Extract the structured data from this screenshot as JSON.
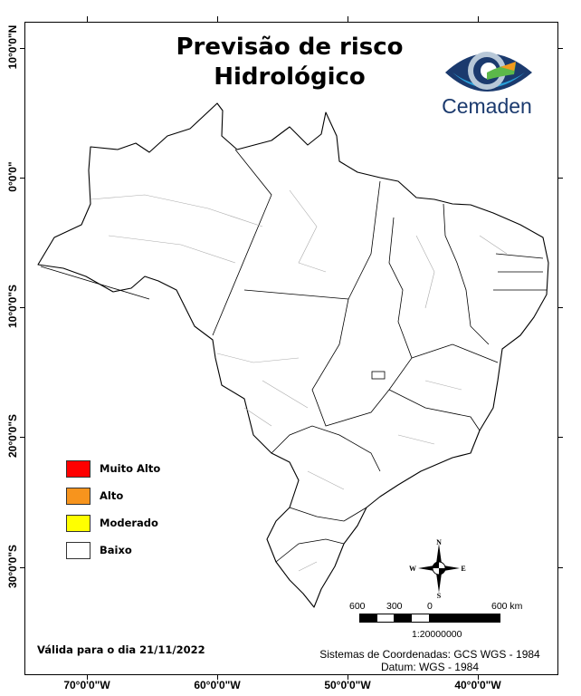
{
  "title": {
    "line1": "Previsão de risco",
    "line2": "Hidrológico"
  },
  "logo": {
    "text": "Cemaden",
    "colors": [
      "#1b3a6e",
      "#2a9fd8",
      "#5cb84a",
      "#f39a1e"
    ]
  },
  "axes": {
    "latitude_labels": [
      "10°0'0\"N",
      "0°0'0\"",
      "10°0'0\"S",
      "20°0'0\"S",
      "30°0'0\"S"
    ],
    "longitude_labels": [
      "70°0'0\"W",
      "60°0'0\"W",
      "50°0'0\"W",
      "40°0'0\"W"
    ]
  },
  "legend": {
    "items": [
      {
        "label": "Muito Alto",
        "color": "#ff0000"
      },
      {
        "label": "Alto",
        "color": "#f7941d"
      },
      {
        "label": "Moderado",
        "color": "#ffff00"
      },
      {
        "label": "Baixo",
        "color": "#ffffff"
      }
    ]
  },
  "map": {
    "region_fill": "#ffffff",
    "risk_level_shown": "Baixo"
  },
  "compass": {
    "n": "N",
    "s": "S",
    "e": "E",
    "w": "W"
  },
  "scale_bar": {
    "labels": [
      "600",
      "300",
      "0",
      "600 km"
    ],
    "ratio": "1:20000000"
  },
  "validity": "Válida para o dia 21/11/2022",
  "coordinate_system": "Sistemas de Coordenadas: GCS WGS - 1984",
  "datum": "Datum: WGS - 1984"
}
